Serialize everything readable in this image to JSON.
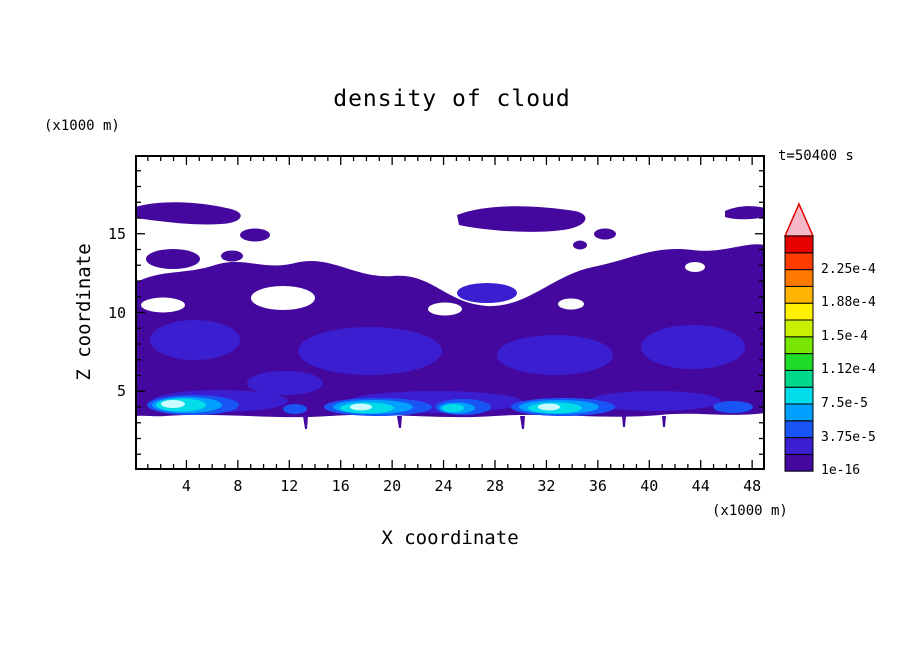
{
  "chart_data": {
    "type": "heatmap",
    "variant": "filled-contour",
    "title": "density of cloud",
    "xlabel": "X coordinate",
    "ylabel": "Z coordinate",
    "x_unit": "(x1000 m)",
    "z_unit": "(x1000 m)",
    "time_label": "t=50400 s",
    "xlim": [
      0,
      49
    ],
    "zlim": [
      0,
      20
    ],
    "x_major_ticks": [
      4,
      8,
      12,
      16,
      20,
      24,
      28,
      32,
      36,
      40,
      44,
      48
    ],
    "x_minor_step": 1,
    "z_major_ticks": [
      5,
      10,
      15
    ],
    "z_minor_step": 1,
    "colorbar": {
      "boundary_labels": [
        "1e-16",
        "3.75e-5",
        "7.5e-5",
        "1.12e-4",
        "1.5e-4",
        "1.88e-4",
        "2.25e-4"
      ],
      "boundary_values": [
        1e-16,
        3.75e-05,
        7.5e-05,
        0.000112,
        0.00015,
        0.000188,
        0.000225
      ],
      "labels_every_n_cells": 2,
      "cell_colors_bottom_to_top": [
        "#45089F",
        "#3A1ED0",
        "#1955F5",
        "#00A0FF",
        "#00DCE8",
        "#00D88C",
        "#1EDC28",
        "#78E600",
        "#C8F000",
        "#FFF000",
        "#FFB400",
        "#FF7800",
        "#FF3C00",
        "#E60000"
      ],
      "overflow_arrow": {
        "fill": "#F5B8C8",
        "stroke": "#E60000"
      }
    },
    "features": [
      "contiguous cloud deck from z=3.5 up to z=10-16 (x1000 m) across the full x range, mostly at the lowest contour level",
      "embedded second-level (darker/denser) patches through the middle of the deck",
      "shallow high-density band at z=4-5 with cyan maxima reaching the 7.5e-5 to 1.5e-4 levels near x=2-7, 16-21, 22-27 and 31-36",
      "detached thin cloud fragments near z=15-17 at x=0-9, 25-36 and 46-49",
      "white background regions are below the 1e-16 threshold (cloud-free air)"
    ]
  }
}
